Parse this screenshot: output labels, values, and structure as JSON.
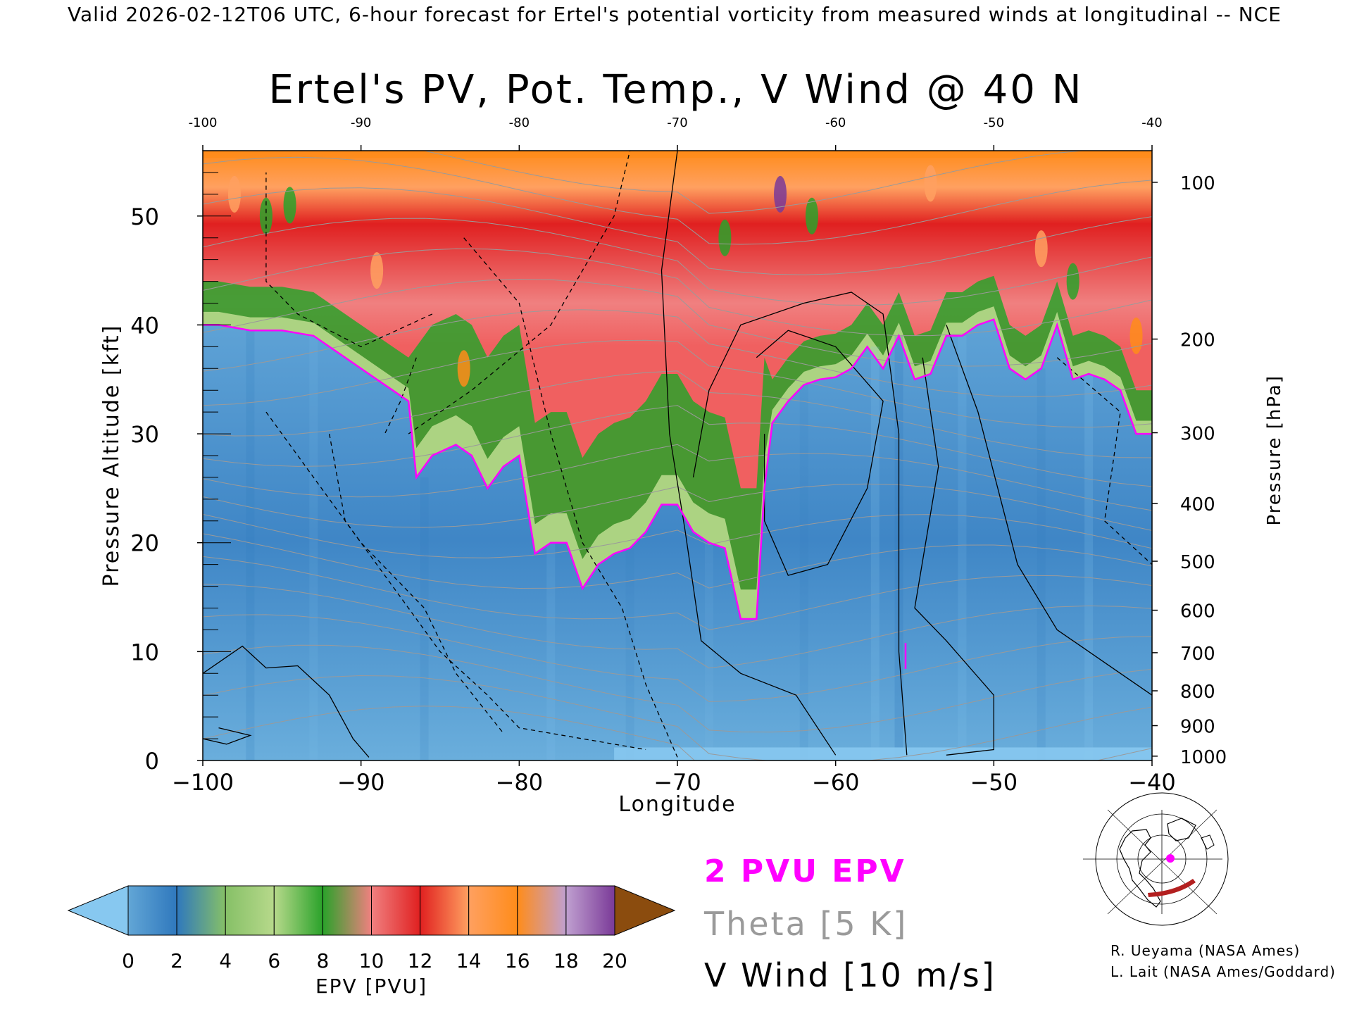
{
  "header": "Valid 2026-02-12T06 UTC, 6-hour forecast for Ertel's potential vorticity from measured winds at longitudinal -- NCE",
  "chart_data": {
    "type": "heatmap",
    "title": "Ertel's PV, Pot. Temp., V Wind @ 40 N",
    "xlabel": "Longitude",
    "ylabel_left": "Pressure Altitude [kft]",
    "ylabel_right": "Pressure [hPa]",
    "xlim": [
      -100,
      -40
    ],
    "ylim": [
      0,
      56
    ],
    "x_ticks": [
      -100,
      -90,
      -80,
      -70,
      -60,
      -50,
      -40
    ],
    "x_tick_labels": [
      "−100",
      "−90",
      "−80",
      "−70",
      "−60",
      "−50",
      "−40"
    ],
    "top_x_tick_labels": [
      "-100",
      "-90",
      "-80",
      "-70",
      "-60",
      "-50",
      "-40"
    ],
    "y_ticks": [
      0,
      10,
      20,
      30,
      40,
      50
    ],
    "y_tick_labels": [
      "0",
      "10",
      "20",
      "30",
      "40",
      "50"
    ],
    "pressure_ticks": [
      {
        "label": "100",
        "kft": 53.1
      },
      {
        "label": "200",
        "kft": 38.7
      },
      {
        "label": "300",
        "kft": 30.1
      },
      {
        "label": "400",
        "kft": 23.6
      },
      {
        "label": "500",
        "kft": 18.3
      },
      {
        "label": "600",
        "kft": 13.8
      },
      {
        "label": "700",
        "kft": 9.9
      },
      {
        "label": "800",
        "kft": 6.4
      },
      {
        "label": "900",
        "kft": 3.2
      },
      {
        "label": "1000",
        "kft": 0.4
      }
    ],
    "tropopause_2pvu": [
      [
        -100,
        40
      ],
      [
        -99,
        40
      ],
      [
        -97,
        39.5
      ],
      [
        -95,
        39.5
      ],
      [
        -93,
        39
      ],
      [
        -91,
        37
      ],
      [
        -89,
        35
      ],
      [
        -88,
        34
      ],
      [
        -87,
        33
      ],
      [
        -86.5,
        26
      ],
      [
        -85.5,
        28
      ],
      [
        -84,
        29
      ],
      [
        -83,
        28
      ],
      [
        -82,
        25
      ],
      [
        -81,
        27
      ],
      [
        -80,
        28
      ],
      [
        -79,
        19
      ],
      [
        -78,
        20
      ],
      [
        -77,
        20
      ],
      [
        -76,
        15.8
      ],
      [
        -75,
        18
      ],
      [
        -74,
        19
      ],
      [
        -73,
        19.5
      ],
      [
        -72,
        21
      ],
      [
        -71,
        23.5
      ],
      [
        -70,
        23.5
      ],
      [
        -69,
        21
      ],
      [
        -68,
        20
      ],
      [
        -67,
        19.5
      ],
      [
        -66,
        13
      ],
      [
        -65,
        13
      ],
      [
        -64.5,
        25
      ],
      [
        -64,
        31
      ],
      [
        -63,
        33
      ],
      [
        -62,
        34.5
      ],
      [
        -61,
        35
      ],
      [
        -60,
        35.2
      ],
      [
        -59,
        36
      ],
      [
        -58,
        38
      ],
      [
        -57,
        36
      ],
      [
        -56,
        39
      ],
      [
        -55,
        35
      ],
      [
        -54,
        35.5
      ],
      [
        -53,
        39
      ],
      [
        -52,
        39
      ],
      [
        -51,
        40
      ],
      [
        -50,
        40.5
      ],
      [
        -49,
        36
      ],
      [
        -48,
        35
      ],
      [
        -47,
        36
      ],
      [
        -46,
        40
      ],
      [
        -45,
        35
      ],
      [
        -44,
        35.5
      ],
      [
        -43,
        35
      ],
      [
        -42,
        34
      ],
      [
        -41,
        30
      ],
      [
        -40,
        30
      ]
    ],
    "v_wind_contours_m_s": [
      -30,
      -20,
      -10,
      0,
      10,
      20,
      30
    ],
    "theta_contours_K": [
      290,
      300,
      310,
      350,
      400,
      410
    ],
    "series": [
      {
        "name": "2 PVU EPV",
        "color": "#ff00ff"
      },
      {
        "name": "Theta [5 K]",
        "color": "#9a9a9a"
      },
      {
        "name": "V Wind [10 m/s]",
        "color": "#000000"
      }
    ],
    "colorbar": {
      "label": "EPV [PVU]",
      "ticks": [
        "0",
        "2",
        "4",
        "6",
        "8",
        "10",
        "12",
        "14",
        "16",
        "18",
        "20"
      ],
      "colors": [
        "#87c8f0",
        "#62a6d6",
        "#2f78bd",
        "#86c067",
        "#b7d98b",
        "#2aa22a",
        "#f08080",
        "#e02020",
        "#ffa060",
        "#ff8c1a",
        "#c0a0d0",
        "#7a3a98",
        "#ffe66e",
        "#8b4c0e"
      ]
    }
  },
  "legend": {
    "pv": "2 PVU EPV",
    "theta": "Theta [5 K]",
    "vwind": "V Wind [10 m/s]"
  },
  "credits": {
    "line1": "R. Ueyama (NASA Ames)",
    "line2": "L. Lait (NASA Ames/Goddard)"
  },
  "colors": {
    "tropopause": "#ff00ff",
    "theta": "#9a9a9a",
    "track": "#b32020"
  },
  "inset": {
    "icon": "polar-map-icon",
    "track_color": "#b32020",
    "marker_color": "#ff00ff"
  }
}
